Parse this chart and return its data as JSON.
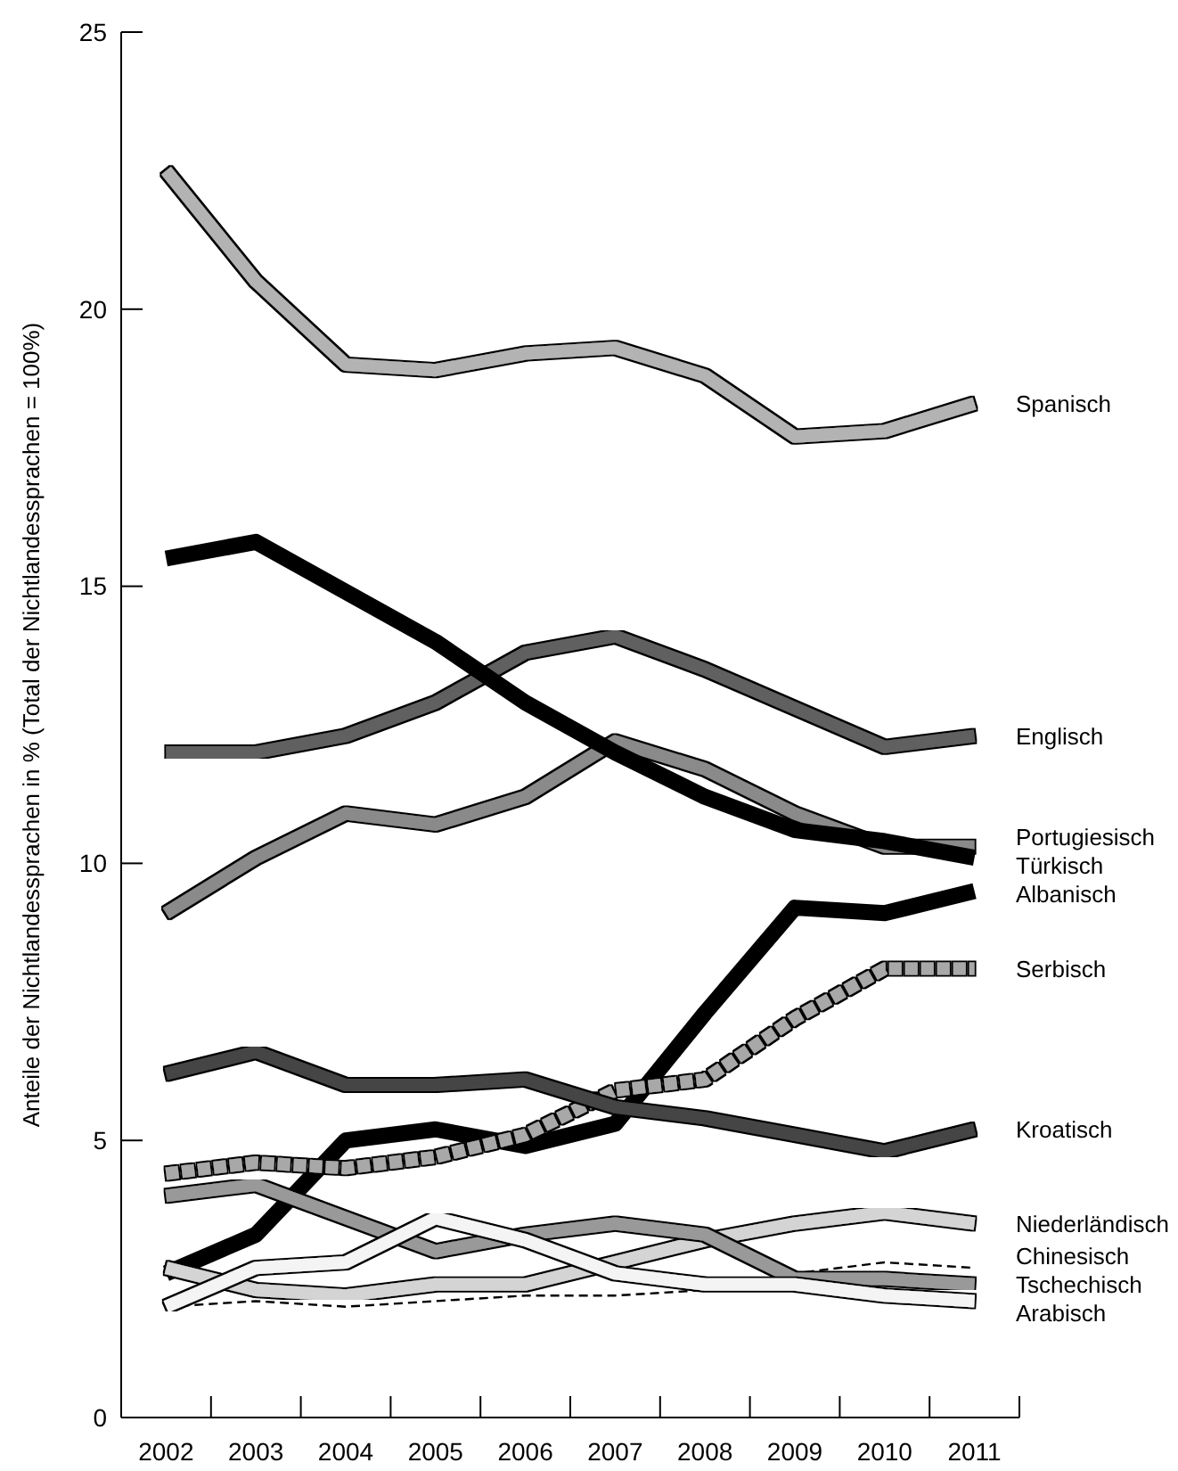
{
  "chart_data": {
    "type": "line",
    "ylabel": "Anteile der Nichtlandessprachen in % (Total der Nichtlandessprachen = 100%)",
    "categories": [
      "2002",
      "2003",
      "2004",
      "2005",
      "2006",
      "2007",
      "2008",
      "2009",
      "2010",
      "2011"
    ],
    "ylim": [
      0,
      25
    ],
    "yticks": [
      0,
      5,
      10,
      15,
      20,
      25
    ],
    "grid": false,
    "marker": "none",
    "series": [
      {
        "name": "Spanisch",
        "color": "#b3b3b3",
        "values": [
          22.5,
          20.5,
          19.0,
          18.9,
          19.2,
          19.3,
          18.8,
          17.7,
          17.8,
          18.3
        ]
      },
      {
        "name": "Englisch",
        "color": "#606060",
        "values": [
          12.0,
          12.0,
          12.3,
          12.9,
          13.8,
          14.1,
          13.5,
          12.8,
          12.1,
          12.3
        ]
      },
      {
        "name": "Portugiesisch",
        "color": "#8a8a8a",
        "values": [
          9.1,
          10.1,
          10.9,
          10.7,
          11.2,
          12.2,
          11.7,
          10.9,
          10.3,
          10.3
        ]
      },
      {
        "name": "Türkisch",
        "color": "#000000",
        "values": [
          15.5,
          15.8,
          14.9,
          14.0,
          12.9,
          12.0,
          11.2,
          10.6,
          10.4,
          10.1
        ]
      },
      {
        "name": "Albanisch",
        "color": "#000000",
        "values": [
          2.6,
          3.3,
          5.0,
          5.2,
          4.9,
          5.3,
          7.3,
          9.2,
          9.1,
          9.5
        ]
      },
      {
        "name": "Serbisch",
        "color": "#a8a8a8",
        "line_style": "dashed",
        "values": [
          4.4,
          4.6,
          4.5,
          4.7,
          5.1,
          5.9,
          6.1,
          7.2,
          8.1,
          8.1
        ]
      },
      {
        "name": "Kroatisch",
        "color": "#454545",
        "values": [
          6.2,
          6.6,
          6.0,
          6.0,
          6.1,
          5.6,
          5.4,
          5.1,
          4.8,
          5.2
        ]
      },
      {
        "name": "Niederländisch",
        "color": "#d4d4d4",
        "values": [
          2.7,
          2.3,
          2.2,
          2.4,
          2.4,
          2.8,
          3.2,
          3.5,
          3.7,
          3.5
        ]
      },
      {
        "name": "Chinesisch",
        "color": "#000000",
        "line_style": "dashed",
        "values": [
          2.0,
          2.1,
          2.0,
          2.1,
          2.2,
          2.2,
          2.3,
          2.6,
          2.8,
          2.7
        ]
      },
      {
        "name": "Tschechisch",
        "color": "#999999",
        "values": [
          4.0,
          4.2,
          3.6,
          3.0,
          3.3,
          3.5,
          3.3,
          2.5,
          2.5,
          2.4
        ]
      },
      {
        "name": "Arabisch",
        "color": "#f4f4f4",
        "values": [
          2.0,
          2.7,
          2.8,
          3.6,
          3.2,
          2.6,
          2.4,
          2.4,
          2.2,
          2.1
        ]
      }
    ]
  }
}
